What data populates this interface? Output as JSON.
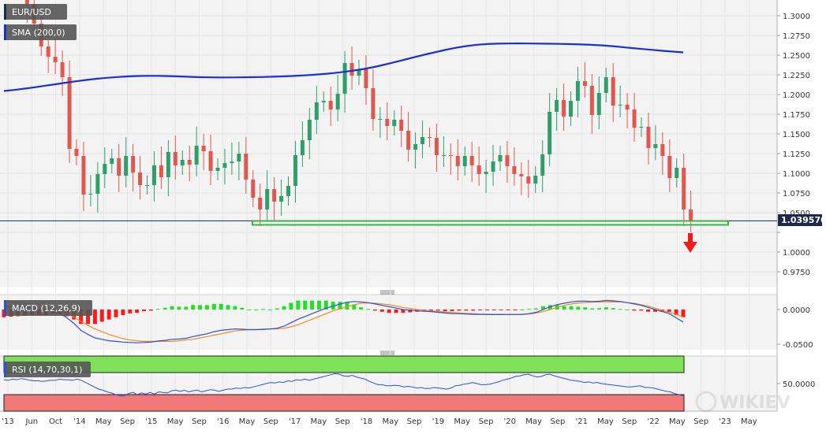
{
  "colors": {
    "up": "#2f9e6a",
    "down": "#e0574f",
    "sma": "#1a2fd6",
    "support_zone": "#39b54a",
    "price_line": "#1b2a4a",
    "macd_line": "#2f4fd6",
    "signal_line": "#f08a24",
    "hist_pos": "#22e022",
    "hist_neg": "#ff1a1a",
    "rsi_line": "#2f4fd6",
    "rsi_over": "#7fe05a",
    "rsi_under": "#f07878",
    "arrow": "#ee1c1c",
    "badge_bg": "#555555",
    "price_badge_bg": "#1b2a4a"
  },
  "chart_data": [
    {
      "type": "candlestick",
      "title": "EUR/USD",
      "interval": "monthly",
      "ylim": [
        0.955,
        1.32
      ],
      "yticks": [
        0.975,
        1.0,
        1.025,
        1.05,
        1.075,
        1.1,
        1.125,
        1.15,
        1.175,
        1.2,
        1.225,
        1.25,
        1.275,
        1.3
      ],
      "ytick_labels": [
        "0.9750",
        "1.0000",
        "",
        "1.0500",
        "1.0750",
        "1.1000",
        "1.1250",
        "1.1500",
        "1.1750",
        "1.2000",
        "1.2250",
        "1.2500",
        "1.2750",
        "1.3000"
      ],
      "last_price": 1.03957,
      "last_price_label": "1.039570",
      "support_zone": [
        1.0345,
        1.0395
      ],
      "candles_close": [
        1.37,
        1.352,
        1.339,
        1.315,
        1.29,
        1.261,
        1.248,
        1.241,
        1.222,
        1.131,
        1.122,
        1.073,
        1.074,
        1.099,
        1.112,
        1.119,
        1.097,
        1.122,
        1.101,
        1.085,
        1.085,
        1.11,
        1.095,
        1.127,
        1.11,
        1.117,
        1.111,
        1.135,
        1.128,
        1.103,
        1.107,
        1.113,
        1.115,
        1.125,
        1.092,
        1.069,
        1.054,
        1.08,
        1.064,
        1.071,
        1.084,
        1.123,
        1.142,
        1.168,
        1.19,
        1.192,
        1.181,
        1.201,
        1.24,
        1.224,
        1.232,
        1.208,
        1.169,
        1.169,
        1.16,
        1.168,
        1.154,
        1.13,
        1.137,
        1.146,
        1.145,
        1.123,
        1.123,
        1.122,
        1.109,
        1.122,
        1.11,
        1.099,
        1.102,
        1.115,
        1.123,
        1.109,
        1.099,
        1.096,
        1.087,
        1.097,
        1.124,
        1.178,
        1.193,
        1.172,
        1.192,
        1.217,
        1.211,
        1.174,
        1.202,
        1.222,
        1.186,
        1.187,
        1.181,
        1.158,
        1.159,
        1.132,
        1.137,
        1.122,
        1.094,
        1.107,
        1.054,
        1.04
      ],
      "sma200": [
        1.2045,
        1.2058,
        1.2075,
        1.2092,
        1.2112,
        1.213,
        1.215,
        1.2168,
        1.2185,
        1.22,
        1.2212,
        1.2222,
        1.223,
        1.2235,
        1.2237,
        1.2237,
        1.2234,
        1.223,
        1.2225,
        1.222,
        1.2218,
        1.2217,
        1.2217,
        1.2218,
        1.222,
        1.2222,
        1.2226,
        1.223,
        1.2235,
        1.2242,
        1.225,
        1.226,
        1.2272,
        1.2287,
        1.2305,
        1.2325,
        1.235,
        1.238,
        1.2412,
        1.2445,
        1.2478,
        1.251,
        1.254,
        1.257,
        1.2596,
        1.2616,
        1.2632,
        1.2641,
        1.2646,
        1.2648,
        1.2649,
        1.2648,
        1.2646,
        1.2645,
        1.2643,
        1.264,
        1.2636,
        1.2631,
        1.2625,
        1.2615,
        1.2603,
        1.259,
        1.2578,
        1.2567,
        1.2555,
        1.2545,
        1.2535
      ]
    },
    {
      "type": "line",
      "title": "MACD (12,26,9)",
      "ylim": [
        -0.058,
        0.017
      ],
      "yticks": [
        0.0,
        -0.05
      ],
      "ytick_labels": [
        "0.0000",
        "-0.0500"
      ],
      "macd": [
        0.005,
        0.0045,
        0.004,
        0.0035,
        0.0025,
        0.001,
        -0.001,
        -0.003,
        -0.006,
        -0.012,
        -0.02,
        -0.03,
        -0.036,
        -0.041,
        -0.043,
        -0.045,
        -0.046,
        -0.047,
        -0.0475,
        -0.048,
        -0.0475,
        -0.047,
        -0.0455,
        -0.0445,
        -0.043,
        -0.0425,
        -0.0415,
        -0.039,
        -0.037,
        -0.035,
        -0.032,
        -0.03,
        -0.029,
        -0.028,
        -0.0285,
        -0.029,
        -0.029,
        -0.0285,
        -0.028,
        -0.027,
        -0.024,
        -0.019,
        -0.014,
        -0.01,
        -0.006,
        -0.002,
        0.002,
        0.005,
        0.008,
        0.0105,
        0.0115,
        0.011,
        0.01,
        0.008,
        0.006,
        0.004,
        0.002,
        0.0,
        -0.001,
        -0.002,
        -0.0025,
        -0.003,
        -0.004,
        -0.005,
        -0.006,
        -0.006,
        -0.0065,
        -0.007,
        -0.007,
        -0.0072,
        -0.0073,
        -0.0073,
        -0.0072,
        -0.0072,
        -0.007,
        -0.006,
        -0.004,
        0.0,
        0.004,
        0.007,
        0.009,
        0.011,
        0.012,
        0.012,
        0.0115,
        0.012,
        0.013,
        0.0125,
        0.0115,
        0.01,
        0.008,
        0.006,
        0.003,
        0.0,
        -0.003,
        -0.006,
        -0.012,
        -0.018
      ],
      "signal": [
        0.012,
        0.011,
        0.01,
        0.009,
        0.0075,
        0.006,
        0.004,
        0.001,
        -0.002,
        -0.006,
        -0.011,
        -0.017,
        -0.023,
        -0.028,
        -0.032,
        -0.036,
        -0.039,
        -0.042,
        -0.044,
        -0.045,
        -0.046,
        -0.046,
        -0.046,
        -0.046,
        -0.046,
        -0.045,
        -0.044,
        -0.043,
        -0.041,
        -0.039,
        -0.037,
        -0.035,
        -0.033,
        -0.031,
        -0.03,
        -0.029,
        -0.029,
        -0.029,
        -0.028,
        -0.028,
        -0.027,
        -0.025,
        -0.022,
        -0.018,
        -0.014,
        -0.01,
        -0.006,
        -0.002,
        0.001,
        0.004,
        0.007,
        0.009,
        0.0095,
        0.009,
        0.008,
        0.007,
        0.005,
        0.003,
        0.0015,
        0.0,
        -0.001,
        -0.002,
        -0.003,
        -0.0035,
        -0.0045,
        -0.005,
        -0.0055,
        -0.006,
        -0.0065,
        -0.0068,
        -0.007,
        -0.007,
        -0.007,
        -0.007,
        -0.007,
        -0.0065,
        -0.005,
        -0.003,
        0.0,
        0.003,
        0.006,
        0.008,
        0.0095,
        0.01,
        0.0105,
        0.0108,
        0.011,
        0.0112,
        0.011,
        0.01,
        0.009,
        0.007,
        0.005,
        0.002,
        -0.001,
        -0.004,
        -0.007,
        -0.011
      ]
    },
    {
      "type": "line",
      "title": "RSI (14,70,30,1)",
      "ylim": [
        0,
        100
      ],
      "yticks": [
        50
      ],
      "ytick_labels": [
        "50.0000"
      ],
      "overbought": 70,
      "oversold": 30,
      "rsi": [
        57,
        56,
        58,
        57,
        59,
        58,
        56,
        55,
        55,
        54,
        55,
        56,
        56,
        58,
        57,
        57,
        56,
        58,
        56,
        52,
        48,
        44,
        40,
        38,
        35,
        33,
        30,
        28,
        28,
        32,
        34,
        30,
        33,
        31,
        34,
        31,
        35,
        34,
        33,
        37,
        38,
        36,
        38,
        35,
        37,
        38,
        35,
        37,
        39,
        38,
        36,
        38,
        40,
        40,
        42,
        41,
        43,
        42,
        44,
        46,
        48,
        50,
        52,
        51,
        53,
        52,
        55,
        54,
        57,
        56,
        58,
        56,
        58,
        60,
        62,
        64,
        66,
        68,
        67,
        64,
        63,
        65,
        62,
        60,
        58,
        54,
        51,
        48,
        48,
        46,
        46,
        47,
        46,
        44,
        45,
        44,
        42,
        43,
        41,
        41,
        43,
        42,
        41,
        40,
        42,
        46,
        47,
        49,
        50,
        52,
        50,
        48,
        48,
        49,
        51,
        53,
        56,
        58,
        60,
        63,
        64,
        66,
        67,
        64,
        62,
        63,
        66,
        67,
        64,
        62,
        60,
        58,
        56,
        55,
        54,
        52,
        53,
        51,
        52,
        50,
        49,
        48,
        47,
        46,
        45,
        44,
        44,
        45,
        46,
        43,
        43,
        42,
        40,
        38,
        36,
        35,
        32,
        30,
        28
      ]
    }
  ],
  "x_axis": {
    "labels": [
      "'13",
      "Jun",
      "Oct",
      "'14",
      "May",
      "Sep",
      "'15",
      "May",
      "Sep",
      "'16",
      "May",
      "Sep",
      "'17",
      "May",
      "Sep",
      "'18",
      "May",
      "Sep",
      "'19",
      "May",
      "Sep",
      "'20",
      "May",
      "Sep",
      "'21",
      "May",
      "Sep",
      "'22",
      "May",
      "Sep",
      "'23",
      "May"
    ]
  },
  "badges": {
    "symbol": "EUR/USD",
    "sma": "SMA (200,0)",
    "macd": "MACD (12,26,9)",
    "rsi": "RSI (14,70,30,1)"
  },
  "watermark": "WIKIEV"
}
